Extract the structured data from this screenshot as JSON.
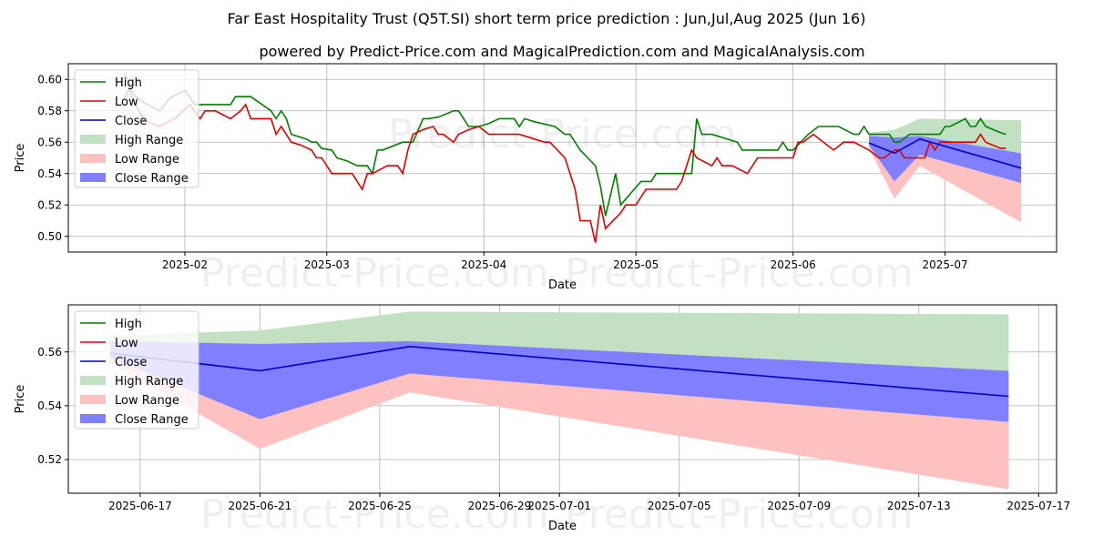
{
  "title": "Far East Hospitality Trust (Q5T.SI) short term price prediction : Jun,Jul,Aug 2025 (Jun 16)",
  "subtitle": "powered by Predict-Price.com and MagicalPrediction.com and MagicalAnalysis.com",
  "watermark": "Predict-Price.com",
  "colors": {
    "high": "#008000",
    "low": "#e00000",
    "close": "#0000cc",
    "high_range": "#c2e0c2",
    "low_range": "#ffc0c0",
    "close_range": "#8080ff"
  },
  "chart_data": [
    {
      "type": "line",
      "xlabel": "Date",
      "ylabel": "Price",
      "xlim": [
        "2025-01-09",
        "2025-07-23"
      ],
      "ylim": [
        0.49,
        0.61
      ],
      "x_ticks": [
        "2025-02",
        "2025-03",
        "2025-04",
        "2025-05",
        "2025-06",
        "2025-07"
      ],
      "y_ticks": [
        "0.50",
        "0.52",
        "0.54",
        "0.56",
        "0.58",
        "0.60"
      ],
      "legend": [
        "High",
        "Low",
        "Close",
        "High Range",
        "Low Range",
        "Close Range"
      ],
      "legend_position": "top-left",
      "series": [
        {
          "name": "High",
          "points": [
            [
              "2025-01-20",
              0.604
            ],
            [
              "2025-01-22",
              0.59
            ],
            [
              "2025-01-24",
              0.585
            ],
            [
              "2025-01-27",
              0.58
            ],
            [
              "2025-01-29",
              0.588
            ],
            [
              "2025-02-01",
              0.593
            ],
            [
              "2025-02-03",
              0.584
            ],
            [
              "2025-02-07",
              0.584
            ],
            [
              "2025-02-10",
              0.584
            ],
            [
              "2025-02-11",
              0.589
            ],
            [
              "2025-02-14",
              0.589
            ],
            [
              "2025-02-18",
              0.58
            ],
            [
              "2025-02-19",
              0.575
            ],
            [
              "2025-02-20",
              0.58
            ],
            [
              "2025-02-21",
              0.575
            ],
            [
              "2025-02-22",
              0.565
            ],
            [
              "2025-02-25",
              0.562
            ],
            [
              "2025-02-26",
              0.56
            ],
            [
              "2025-02-27",
              0.56
            ],
            [
              "2025-02-28",
              0.556
            ],
            [
              "2025-03-02",
              0.555
            ],
            [
              "2025-03-03",
              0.55
            ],
            [
              "2025-03-05",
              0.548
            ],
            [
              "2025-03-07",
              0.545
            ],
            [
              "2025-03-09",
              0.545
            ],
            [
              "2025-03-10",
              0.54
            ],
            [
              "2025-03-11",
              0.555
            ],
            [
              "2025-03-12",
              0.555
            ],
            [
              "2025-03-16",
              0.56
            ],
            [
              "2025-03-18",
              0.56
            ],
            [
              "2025-03-20",
              0.575
            ],
            [
              "2025-03-21",
              0.575
            ],
            [
              "2025-03-23",
              0.576
            ],
            [
              "2025-03-26",
              0.58
            ],
            [
              "2025-03-27",
              0.58
            ],
            [
              "2025-03-29",
              0.57
            ],
            [
              "2025-03-31",
              0.57
            ],
            [
              "2025-04-02",
              0.572
            ],
            [
              "2025-04-04",
              0.575
            ],
            [
              "2025-04-07",
              0.575
            ],
            [
              "2025-04-08",
              0.57
            ],
            [
              "2025-04-09",
              0.575
            ],
            [
              "2025-04-11",
              0.573
            ],
            [
              "2025-04-15",
              0.57
            ],
            [
              "2025-04-17",
              0.565
            ],
            [
              "2025-04-18",
              0.565
            ],
            [
              "2025-04-20",
              0.555
            ],
            [
              "2025-04-23",
              0.545
            ],
            [
              "2025-04-24",
              0.532
            ],
            [
              "2025-04-25",
              0.513
            ],
            [
              "2025-04-27",
              0.54
            ],
            [
              "2025-04-28",
              0.52
            ],
            [
              "2025-05-02",
              0.535
            ],
            [
              "2025-05-04",
              0.535
            ],
            [
              "2025-05-05",
              0.54
            ],
            [
              "2025-05-07",
              0.54
            ],
            [
              "2025-05-10",
              0.54
            ],
            [
              "2025-05-12",
              0.54
            ],
            [
              "2025-05-13",
              0.575
            ],
            [
              "2025-05-14",
              0.565
            ],
            [
              "2025-05-16",
              0.565
            ],
            [
              "2025-05-21",
              0.56
            ],
            [
              "2025-05-22",
              0.555
            ],
            [
              "2025-05-25",
              0.555
            ],
            [
              "2025-05-27",
              0.555
            ],
            [
              "2025-05-29",
              0.555
            ],
            [
              "2025-05-30",
              0.56
            ],
            [
              "2025-05-31",
              0.555
            ],
            [
              "2025-06-01",
              0.555
            ],
            [
              "2025-06-04",
              0.565
            ],
            [
              "2025-06-06",
              0.57
            ],
            [
              "2025-06-08",
              0.57
            ],
            [
              "2025-06-10",
              0.57
            ],
            [
              "2025-06-13",
              0.565
            ],
            [
              "2025-06-14",
              0.565
            ],
            [
              "2025-06-15",
              0.57
            ],
            [
              "2025-06-16",
              0.565
            ],
            [
              "2025-06-20",
              0.565
            ],
            [
              "2025-06-21",
              0.56
            ],
            [
              "2025-06-22",
              0.56
            ],
            [
              "2025-06-24",
              0.565
            ],
            [
              "2025-06-27",
              0.565
            ],
            [
              "2025-06-30",
              0.565
            ],
            [
              "2025-07-01",
              0.57
            ],
            [
              "2025-07-02",
              0.57
            ],
            [
              "2025-07-05",
              0.575
            ],
            [
              "2025-07-06",
              0.57
            ],
            [
              "2025-07-07",
              0.57
            ],
            [
              "2025-07-08",
              0.575
            ],
            [
              "2025-07-09",
              0.57
            ],
            [
              "2025-07-12",
              0.566
            ],
            [
              "2025-07-13",
              0.565
            ]
          ]
        },
        {
          "name": "Low",
          "points": [
            [
              "2025-01-20",
              0.588
            ],
            [
              "2025-01-21",
              0.594
            ],
            [
              "2025-01-22",
              0.585
            ],
            [
              "2025-01-24",
              0.574
            ],
            [
              "2025-01-27",
              0.57
            ],
            [
              "2025-01-30",
              0.575
            ],
            [
              "2025-02-02",
              0.584
            ],
            [
              "2025-02-04",
              0.575
            ],
            [
              "2025-02-05",
              0.58
            ],
            [
              "2025-02-07",
              0.58
            ],
            [
              "2025-02-10",
              0.575
            ],
            [
              "2025-02-12",
              0.58
            ],
            [
              "2025-02-13",
              0.584
            ],
            [
              "2025-02-14",
              0.575
            ],
            [
              "2025-02-17",
              0.575
            ],
            [
              "2025-02-18",
              0.575
            ],
            [
              "2025-02-19",
              0.565
            ],
            [
              "2025-02-20",
              0.57
            ],
            [
              "2025-02-22",
              0.56
            ],
            [
              "2025-02-24",
              0.558
            ],
            [
              "2025-02-26",
              0.555
            ],
            [
              "2025-02-27",
              0.55
            ],
            [
              "2025-02-28",
              0.55
            ],
            [
              "2025-03-02",
              0.54
            ],
            [
              "2025-03-03",
              0.54
            ],
            [
              "2025-03-06",
              0.54
            ],
            [
              "2025-03-08",
              0.53
            ],
            [
              "2025-03-09",
              0.54
            ],
            [
              "2025-03-10",
              0.54
            ],
            [
              "2025-03-13",
              0.545
            ],
            [
              "2025-03-15",
              0.545
            ],
            [
              "2025-03-16",
              0.54
            ],
            [
              "2025-03-17",
              0.555
            ],
            [
              "2025-03-18",
              0.565
            ],
            [
              "2025-03-20",
              0.568
            ],
            [
              "2025-03-22",
              0.57
            ],
            [
              "2025-03-23",
              0.565
            ],
            [
              "2025-03-24",
              0.565
            ],
            [
              "2025-03-26",
              0.56
            ],
            [
              "2025-03-27",
              0.565
            ],
            [
              "2025-03-29",
              0.568
            ],
            [
              "2025-03-31",
              0.57
            ],
            [
              "2025-04-02",
              0.565
            ],
            [
              "2025-04-06",
              0.565
            ],
            [
              "2025-04-08",
              0.565
            ],
            [
              "2025-04-11",
              0.562
            ],
            [
              "2025-04-13",
              0.56
            ],
            [
              "2025-04-14",
              0.56
            ],
            [
              "2025-04-17",
              0.55
            ],
            [
              "2025-04-19",
              0.53
            ],
            [
              "2025-04-20",
              0.51
            ],
            [
              "2025-04-22",
              0.51
            ],
            [
              "2025-04-23",
              0.496
            ],
            [
              "2025-04-24",
              0.52
            ],
            [
              "2025-04-25",
              0.505
            ],
            [
              "2025-04-28",
              0.515
            ],
            [
              "2025-04-29",
              0.52
            ],
            [
              "2025-05-01",
              0.52
            ],
            [
              "2025-05-03",
              0.53
            ],
            [
              "2025-05-06",
              0.53
            ],
            [
              "2025-05-08",
              0.53
            ],
            [
              "2025-05-09",
              0.53
            ],
            [
              "2025-05-10",
              0.535
            ],
            [
              "2025-05-12",
              0.555
            ],
            [
              "2025-05-13",
              0.55
            ],
            [
              "2025-05-16",
              0.545
            ],
            [
              "2025-05-17",
              0.55
            ],
            [
              "2025-05-18",
              0.545
            ],
            [
              "2025-05-20",
              0.545
            ],
            [
              "2025-05-23",
              0.54
            ],
            [
              "2025-05-25",
              0.55
            ],
            [
              "2025-05-28",
              0.55
            ],
            [
              "2025-05-30",
              0.55
            ],
            [
              "2025-06-01",
              0.55
            ],
            [
              "2025-06-02",
              0.56
            ],
            [
              "2025-06-03",
              0.56
            ],
            [
              "2025-06-05",
              0.565
            ],
            [
              "2025-06-07",
              0.56
            ],
            [
              "2025-06-09",
              0.555
            ],
            [
              "2025-06-11",
              0.56
            ],
            [
              "2025-06-13",
              0.56
            ],
            [
              "2025-06-16",
              0.555
            ],
            [
              "2025-06-18",
              0.55
            ],
            [
              "2025-06-19",
              0.55
            ],
            [
              "2025-06-21",
              0.555
            ],
            [
              "2025-06-22",
              0.555
            ],
            [
              "2025-06-23",
              0.55
            ],
            [
              "2025-06-25",
              0.55
            ],
            [
              "2025-06-27",
              0.55
            ],
            [
              "2025-06-28",
              0.56
            ],
            [
              "2025-06-29",
              0.555
            ],
            [
              "2025-06-30",
              0.56
            ],
            [
              "2025-07-03",
              0.56
            ],
            [
              "2025-07-06",
              0.56
            ],
            [
              "2025-07-07",
              0.56
            ],
            [
              "2025-07-08",
              0.565
            ],
            [
              "2025-07-09",
              0.56
            ],
            [
              "2025-07-12",
              0.556
            ],
            [
              "2025-07-13",
              0.556
            ]
          ]
        }
      ],
      "forecast": {
        "x": [
          "2025-06-16",
          "2025-06-21",
          "2025-06-26",
          "2025-07-16"
        ],
        "close": [
          0.5595,
          0.553,
          0.562,
          0.5435
        ],
        "close_range": [
          [
            0.558,
            0.564
          ],
          [
            0.535,
            0.563
          ],
          [
            0.552,
            0.564
          ],
          [
            0.534,
            0.553
          ]
        ],
        "high_range": [
          [
            0.563,
            0.566
          ],
          [
            0.563,
            0.568
          ],
          [
            0.564,
            0.575
          ],
          [
            0.553,
            0.574
          ]
        ],
        "low_range": [
          [
            0.556,
            0.559
          ],
          [
            0.524,
            0.556
          ],
          [
            0.545,
            0.552
          ],
          [
            0.509,
            0.534
          ]
        ]
      }
    },
    {
      "type": "line",
      "xlabel": "Date",
      "ylabel": "Price",
      "xlim": [
        "2025-06-14.6",
        "2025-07-17.6"
      ],
      "ylim": [
        0.5075,
        0.5775
      ],
      "x_ticks": [
        "2025-06-17",
        "2025-06-21",
        "2025-06-25",
        "2025-06-29",
        "2025-07-01",
        "2025-07-05",
        "2025-07-09",
        "2025-07-13",
        "2025-07-17"
      ],
      "y_ticks": [
        "0.52",
        "0.54",
        "0.56"
      ],
      "legend": [
        "High",
        "Low",
        "Close",
        "High Range",
        "Low Range",
        "Close Range"
      ],
      "legend_position": "top-left",
      "forecast": {
        "x": [
          "2025-06-16",
          "2025-06-21",
          "2025-06-26",
          "2025-07-16"
        ],
        "close": [
          0.5595,
          0.553,
          0.562,
          0.5435
        ],
        "close_range": [
          [
            0.558,
            0.564
          ],
          [
            0.535,
            0.563
          ],
          [
            0.552,
            0.564
          ],
          [
            0.534,
            0.553
          ]
        ],
        "high_range": [
          [
            0.563,
            0.566
          ],
          [
            0.563,
            0.568
          ],
          [
            0.564,
            0.575
          ],
          [
            0.553,
            0.574
          ]
        ],
        "low_range": [
          [
            0.556,
            0.559
          ],
          [
            0.524,
            0.556
          ],
          [
            0.545,
            0.552
          ],
          [
            0.509,
            0.534
          ]
        ]
      }
    }
  ]
}
